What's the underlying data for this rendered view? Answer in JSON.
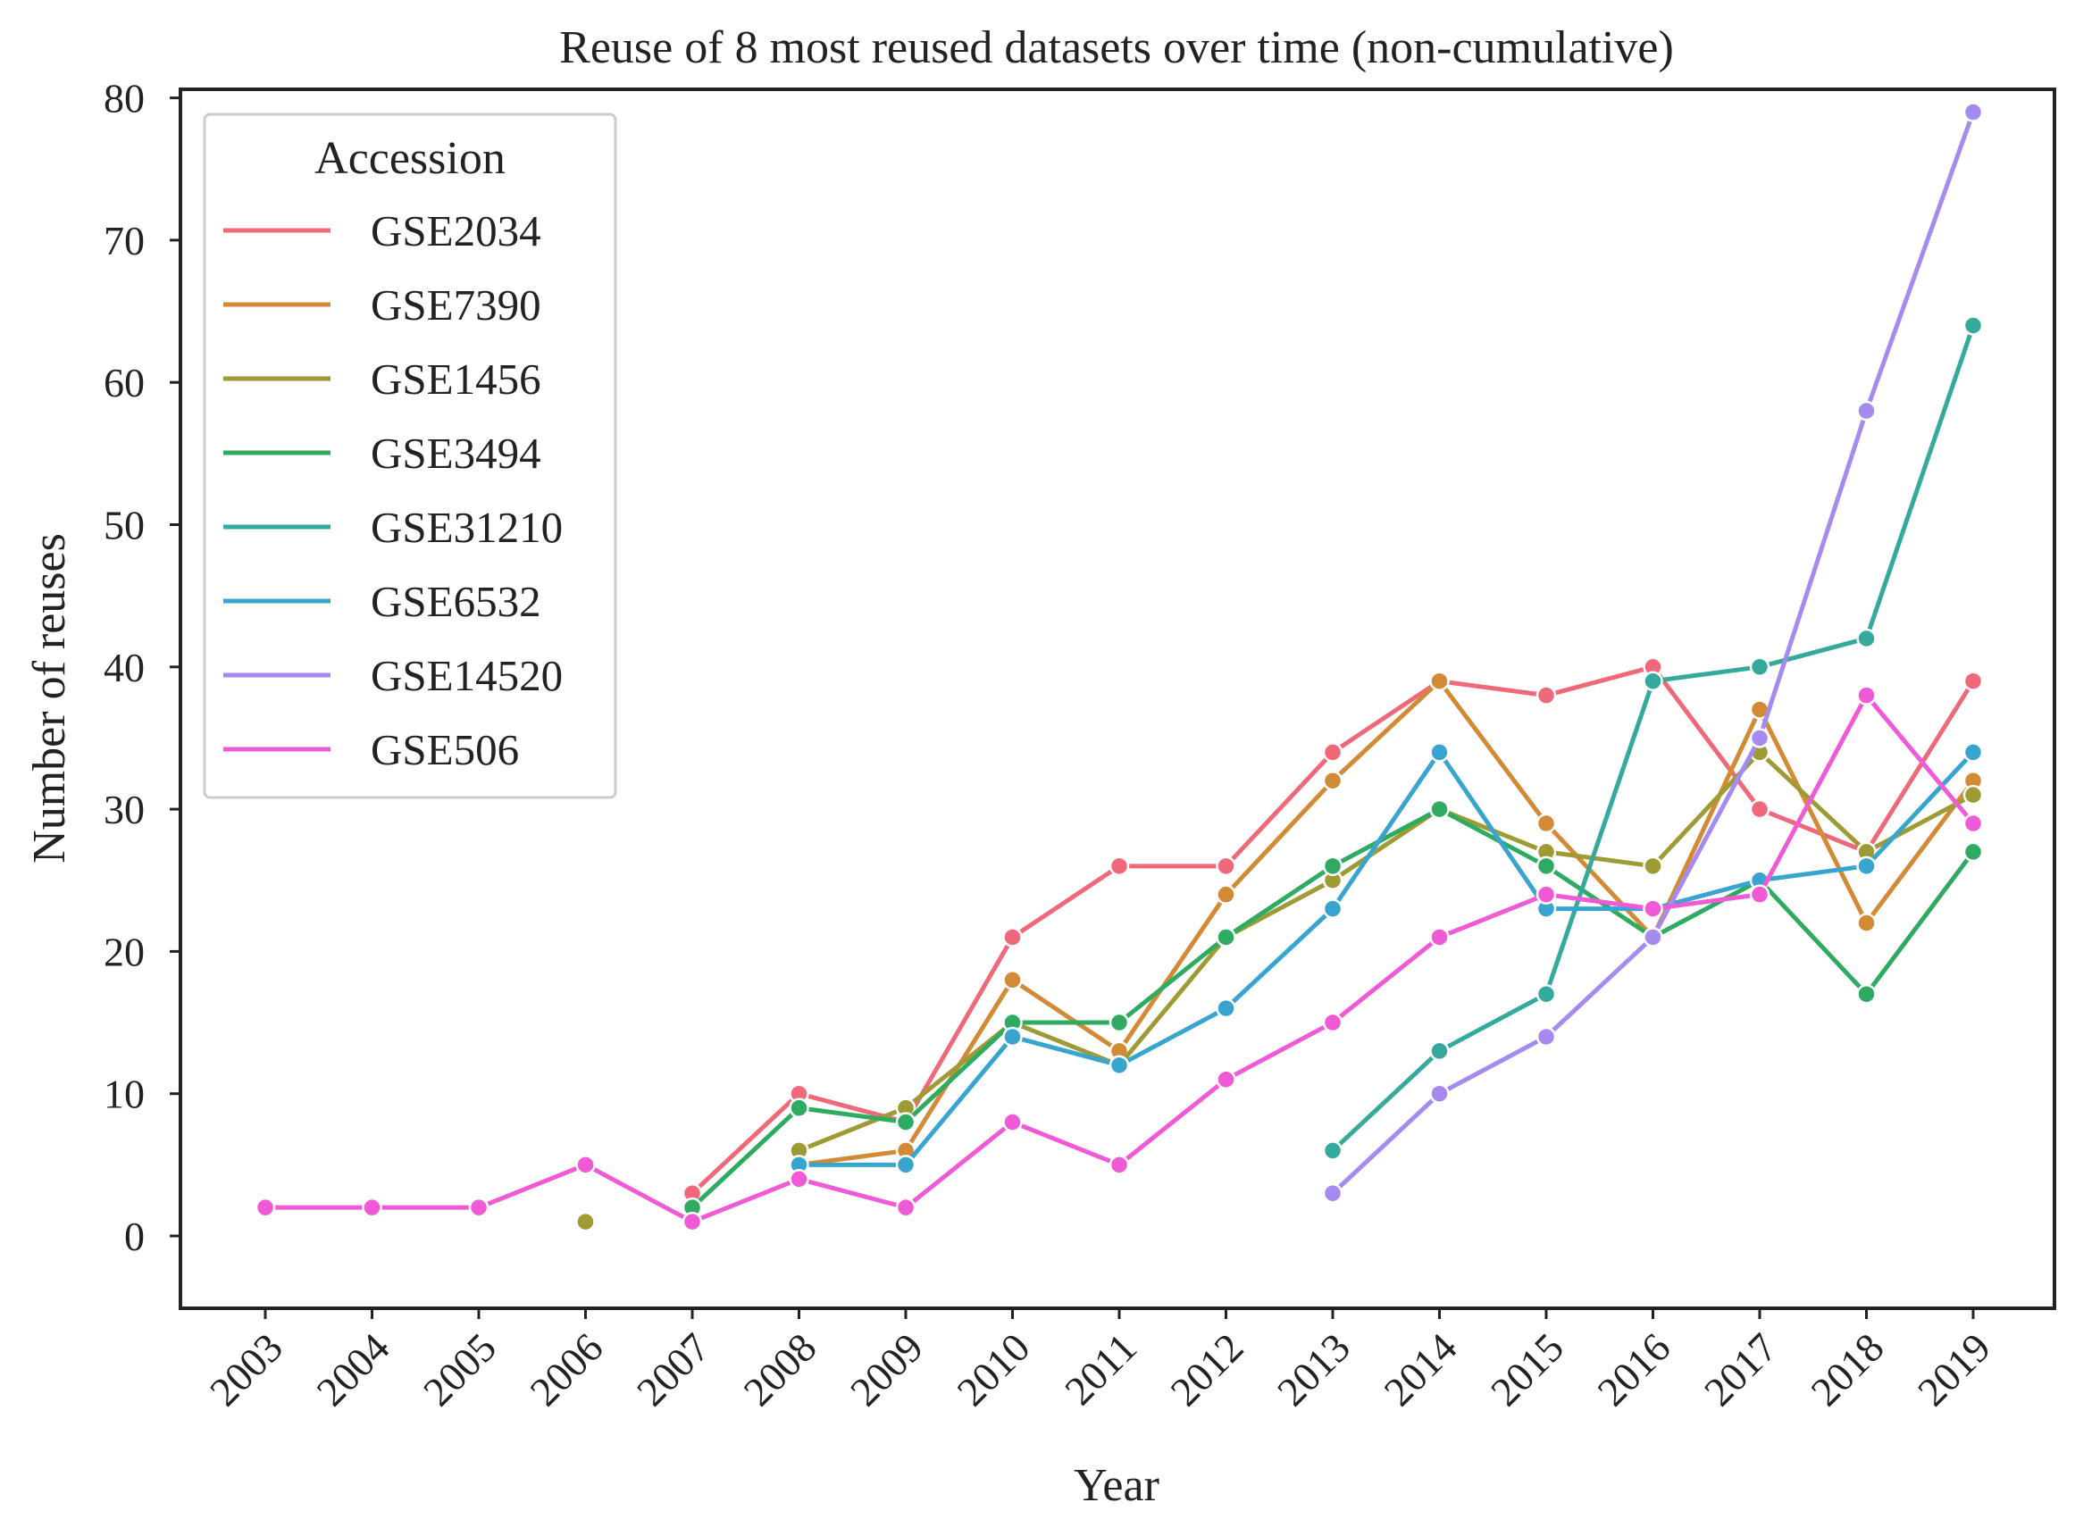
{
  "chart_data": {
    "type": "line",
    "title": "Reuse of 8 most reused datasets over time (non-cumulative)",
    "xlabel": "Year",
    "ylabel": "Number of reuses",
    "categories": [
      "2003",
      "2004",
      "2005",
      "2006",
      "2007",
      "2008",
      "2009",
      "2010",
      "2011",
      "2012",
      "2013",
      "2014",
      "2015",
      "2016",
      "2017",
      "2018",
      "2019"
    ],
    "yticks": [
      "0",
      "10",
      "20",
      "30",
      "40",
      "50",
      "60",
      "70",
      "80"
    ],
    "ylim": [
      -3,
      83
    ],
    "grid": false,
    "legend": {
      "title": "Accession",
      "position": "top-left"
    },
    "series": [
      {
        "name": "GSE2034",
        "color": "#f0697a",
        "values": [
          null,
          null,
          null,
          null,
          3,
          10,
          8,
          21,
          26,
          26,
          34,
          39,
          38,
          40,
          30,
          27,
          39
        ]
      },
      {
        "name": "GSE7390",
        "color": "#d38a35",
        "values": [
          null,
          null,
          null,
          null,
          null,
          5,
          6,
          18,
          13,
          24,
          32,
          39,
          29,
          21,
          37,
          22,
          32
        ]
      },
      {
        "name": "GSE1456",
        "color": "#9e9b34",
        "values": [
          null,
          null,
          null,
          1,
          null,
          6,
          9,
          15,
          12,
          21,
          25,
          30,
          27,
          26,
          34,
          27,
          31
        ]
      },
      {
        "name": "GSE3494",
        "color": "#2eab61",
        "values": [
          null,
          null,
          null,
          null,
          2,
          9,
          8,
          15,
          15,
          21,
          26,
          30,
          26,
          21,
          25,
          17,
          27
        ]
      },
      {
        "name": "GSE31210",
        "color": "#35aa9c",
        "values": [
          null,
          null,
          null,
          null,
          null,
          null,
          null,
          null,
          null,
          null,
          6,
          13,
          17,
          39,
          40,
          42,
          64
        ]
      },
      {
        "name": "GSE6532",
        "color": "#38a5d0",
        "values": [
          null,
          null,
          null,
          null,
          null,
          5,
          5,
          14,
          12,
          16,
          23,
          34,
          23,
          23,
          25,
          26,
          34
        ]
      },
      {
        "name": "GSE14520",
        "color": "#a58af0",
        "values": [
          null,
          null,
          null,
          null,
          null,
          null,
          null,
          null,
          null,
          null,
          3,
          10,
          14,
          21,
          35,
          58,
          79
        ]
      },
      {
        "name": "GSE506",
        "color": "#f05ad6",
        "values": [
          2,
          2,
          2,
          5,
          1,
          4,
          2,
          8,
          5,
          11,
          15,
          21,
          24,
          23,
          24,
          38,
          29
        ]
      }
    ]
  }
}
